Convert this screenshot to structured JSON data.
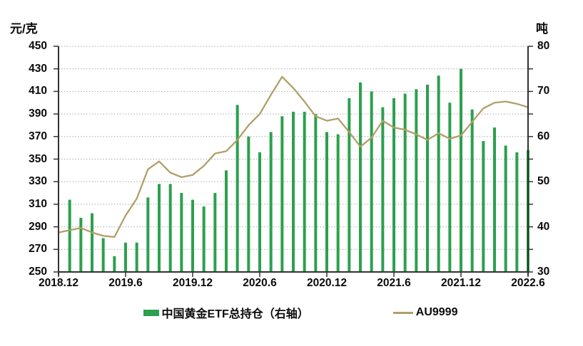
{
  "chart": {
    "left_axis_title": "元/克",
    "right_axis_title": "吨",
    "legend": [
      {
        "label": "中国黄金ETF总持仓（右轴）",
        "marker": "bar-swatch",
        "color": "#2ca04e"
      },
      {
        "label": "AU9999",
        "marker": "line-swatch",
        "color": "#b09f68"
      }
    ]
  },
  "chart_data": {
    "type": "bar+line",
    "title": "",
    "categories": [
      "2018.12",
      "2019.1",
      "2019.2",
      "2019.3",
      "2019.4",
      "2019.5",
      "2019.6",
      "2019.7",
      "2019.8",
      "2019.9",
      "2019.10",
      "2019.11",
      "2019.12",
      "2020.1",
      "2020.2",
      "2020.3",
      "2020.4",
      "2020.5",
      "2020.6",
      "2020.7",
      "2020.8",
      "2020.9",
      "2020.10",
      "2020.11",
      "2020.12",
      "2021.1",
      "2021.2",
      "2021.3",
      "2021.4",
      "2021.5",
      "2021.6",
      "2021.7",
      "2021.8",
      "2021.9",
      "2021.10",
      "2021.11",
      "2021.12",
      "2022.1",
      "2022.2",
      "2022.3",
      "2022.4",
      "2022.5",
      "2022.6"
    ],
    "x_axis": {
      "tick_labels": [
        "2018.12",
        "2019.6",
        "2019.12",
        "2020.6",
        "2020.12",
        "2021.6",
        "2021.12",
        "2022.6"
      ],
      "tick_indices": [
        0,
        6,
        12,
        18,
        24,
        30,
        36,
        42
      ]
    },
    "left_axis": {
      "title": "元/克",
      "min": 250,
      "max": 450,
      "step": 20,
      "tick_labels": [
        450,
        430,
        410,
        390,
        370,
        350,
        330,
        310,
        290,
        270,
        250
      ]
    },
    "right_axis": {
      "title": "吨",
      "min": 30,
      "max": 80,
      "tick_step": 5,
      "label_step": 10,
      "tick_labels": [
        80,
        70,
        60,
        50,
        40,
        30
      ]
    },
    "grid": {
      "horizontal": true,
      "style": "dotted",
      "color": "#a9a9a9"
    },
    "legend_position": "bottom",
    "series": [
      {
        "name": "中国黄金ETF总持仓（右轴）",
        "type": "bar",
        "axis": "right",
        "unit": "吨",
        "color": "#2ca04e",
        "values": [
          null,
          46,
          42,
          43,
          37.5,
          33.5,
          36.5,
          36.5,
          46.5,
          49.5,
          49.5,
          47.5,
          46,
          44.5,
          47.5,
          52.5,
          67,
          60,
          56.5,
          61,
          64.5,
          65.5,
          65.5,
          65,
          61,
          60.5,
          68.5,
          72,
          70,
          66.5,
          68.5,
          69.5,
          70.5,
          71.5,
          73.5,
          67.5,
          75,
          66,
          59,
          62,
          58,
          56.5,
          57
        ]
      },
      {
        "name": "AU9999",
        "type": "line",
        "axis": "left",
        "unit": "元/克",
        "color": "#b09f68",
        "values": [
          285,
          287,
          289,
          285,
          282,
          281,
          300,
          315,
          341,
          348,
          338,
          334,
          336,
          344,
          355,
          357,
          367,
          380,
          390,
          407,
          423,
          413,
          401,
          388,
          384,
          386,
          374,
          361,
          369,
          384,
          378,
          376,
          372,
          367,
          373,
          368,
          371,
          383,
          395,
          400,
          401,
          399,
          396
        ]
      }
    ]
  }
}
